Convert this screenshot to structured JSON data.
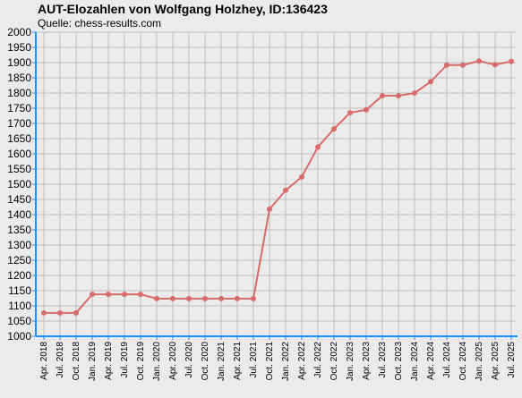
{
  "title": "AUT-Elozahlen von Wolfgang Holzhey, ID:136423",
  "subtitle": "Quelle: chess-results.com",
  "colors": {
    "line": "#d96b6b",
    "axis": "#1e90ff",
    "grid": "#bdbdbd",
    "background": "#ebebeb"
  },
  "chart_data": {
    "type": "line",
    "title": "AUT-Elozahlen von Wolfgang Holzhey, ID:136423",
    "subtitle": "Quelle: chess-results.com",
    "xlabel": "",
    "ylabel": "",
    "ylim": [
      1000,
      2000
    ],
    "y_ticks": [
      1000,
      1050,
      1100,
      1150,
      1200,
      1250,
      1300,
      1350,
      1400,
      1450,
      1500,
      1550,
      1600,
      1650,
      1700,
      1750,
      1800,
      1850,
      1900,
      1950,
      2000
    ],
    "grid": true,
    "legend": "none",
    "categories": [
      "Apr. 2018",
      "Jul. 2018",
      "Oct. 2018",
      "Jan. 2019",
      "Apr. 2019",
      "Jul. 2019",
      "Oct. 2019",
      "Jan. 2020",
      "Apr. 2020",
      "Jul. 2020",
      "Oct. 2020",
      "Jan. 2021",
      "Apr. 2021",
      "Jul. 2021",
      "Oct. 2021",
      "Jan. 2022",
      "Apr. 2022",
      "Jul. 2022",
      "Oct. 2022",
      "Jan. 2023",
      "Apr. 2023",
      "Jul. 2023",
      "Oct. 2023",
      "Jan. 2024",
      "Apr. 2024",
      "Jul. 2024",
      "Oct. 2024",
      "Jan. 2025",
      "Apr. 2025",
      "Jul. 2025"
    ],
    "values": [
      1077,
      1077,
      1077,
      1138,
      1138,
      1138,
      1138,
      1124,
      1124,
      1124,
      1124,
      1124,
      1124,
      1124,
      1418,
      1480,
      1524,
      1622,
      1682,
      1735,
      1745,
      1791,
      1791,
      1800,
      1837,
      1892,
      1892,
      1905,
      1893,
      1904
    ]
  }
}
